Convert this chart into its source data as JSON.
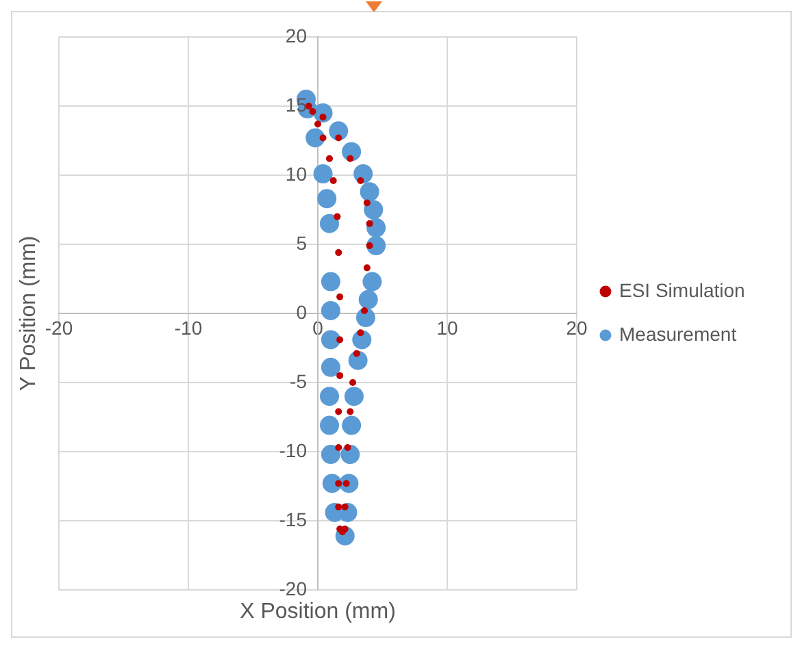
{
  "chart_data": {
    "type": "scatter",
    "xlabel": "X Position (mm)",
    "ylabel": "Y Position (mm)",
    "xlim": [
      -20,
      20
    ],
    "ylim": [
      -20,
      20
    ],
    "xticks": [
      -20,
      -10,
      0,
      10,
      20
    ],
    "yticks": [
      -20,
      -15,
      -10,
      -5,
      0,
      5,
      10,
      15,
      20
    ],
    "grid": true,
    "legend": "right",
    "marker": "circle",
    "series": [
      {
        "name": "ESI Simulation",
        "color": "#c00000",
        "x": [
          -0.7,
          0.4,
          1.6,
          2.5,
          3.3,
          3.8,
          4.0,
          4.0,
          3.8,
          3.6,
          3.3,
          3.0,
          2.7,
          2.5,
          2.3,
          2.2,
          2.1,
          2.1,
          1.9,
          1.7,
          1.6,
          1.6,
          1.6,
          1.6,
          1.7,
          1.7,
          1.7,
          1.6,
          1.5,
          1.2,
          0.9,
          0.4,
          0,
          -0.4
        ],
        "values": [
          15.0,
          14.2,
          12.7,
          11.2,
          9.6,
          8.0,
          6.5,
          4.9,
          3.3,
          0.2,
          -1.4,
          -2.9,
          -5.0,
          -7.1,
          -9.7,
          -12.3,
          -14.0,
          -15.6,
          -15.8,
          -15.6,
          -14.0,
          -12.3,
          -9.7,
          -7.1,
          -4.5,
          -1.9,
          1.2,
          4.4,
          7.0,
          9.6,
          11.2,
          12.7,
          13.7,
          14.6
        ]
      },
      {
        "name": "Measurement",
        "color": "#5b9bd5",
        "x": [
          -0.9,
          0.4,
          1.6,
          2.6,
          3.5,
          4.0,
          4.3,
          4.5,
          4.5,
          4.2,
          3.9,
          3.7,
          3.4,
          3.1,
          2.8,
          2.6,
          2.5,
          2.4,
          2.3,
          2.1,
          1.3,
          1.1,
          1.0,
          0.9,
          0.9,
          1.0,
          1.0,
          1.0,
          1.0,
          0.9,
          0.7,
          0.4,
          -0.2,
          -0.8
        ],
        "values": [
          15.5,
          14.5,
          13.2,
          11.7,
          10.1,
          8.8,
          7.5,
          6.2,
          4.9,
          2.3,
          1.0,
          -0.3,
          -1.9,
          -3.4,
          -6.0,
          -8.1,
          -10.2,
          -12.3,
          -14.4,
          -16.1,
          -14.4,
          -12.3,
          -10.2,
          -8.1,
          -6.0,
          -3.9,
          -1.9,
          0.2,
          2.3,
          6.5,
          8.3,
          10.1,
          12.7,
          14.8
        ]
      }
    ]
  }
}
